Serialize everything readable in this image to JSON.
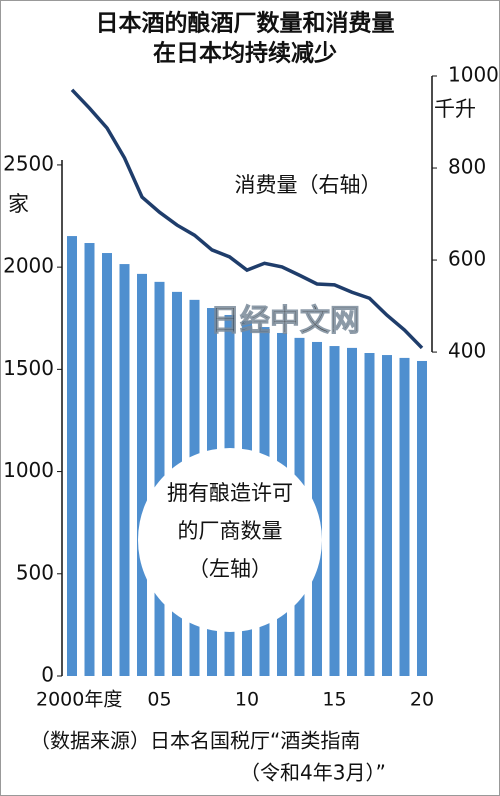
{
  "chart_data": {
    "type": "bar-line",
    "title": [
      "日本酒的酿酒厂数量和消费量",
      "在日本均持续减少"
    ],
    "y_unit": "家",
    "y2_unit": "千升",
    "categories": [
      "2000年度",
      null,
      null,
      null,
      null,
      "05",
      null,
      null,
      null,
      null,
      "10",
      null,
      null,
      null,
      null,
      "15",
      null,
      null,
      null,
      null,
      "20"
    ],
    "series": [
      {
        "name": [
          "拥有酿造许可",
          "的厂商数量",
          "（左轴）"
        ],
        "type": "bar",
        "color": "#4f8fcf",
        "axis": "y",
        "values": [
          2152,
          2118,
          2069,
          2015,
          1967,
          1928,
          1879,
          1840,
          1800,
          1766,
          1737,
          1707,
          1678,
          1654,
          1634,
          1614,
          1605,
          1580,
          1570,
          1556,
          1541
        ]
      },
      {
        "name": [
          "消费量（右轴）"
        ],
        "type": "line",
        "color": "#1f3d6b",
        "axis": "y2",
        "values": [
          970,
          930,
          887,
          822,
          737,
          704,
          676,
          654,
          622,
          607,
          578,
          593,
          585,
          567,
          548,
          546,
          530,
          517,
          480,
          448,
          409
        ]
      }
    ],
    "ylim": [
      0,
      2935
    ],
    "yticks": [
      0,
      500,
      1000,
      1500,
      2000,
      2500
    ],
    "y2lim": [
      -304,
      1000
    ],
    "y2ticks": [
      400,
      600,
      800,
      1000
    ],
    "watermark": "日经中文网",
    "source": [
      "（数据来源）日本名国税厅“酒类指南",
      "（令和4年3月）”"
    ]
  }
}
